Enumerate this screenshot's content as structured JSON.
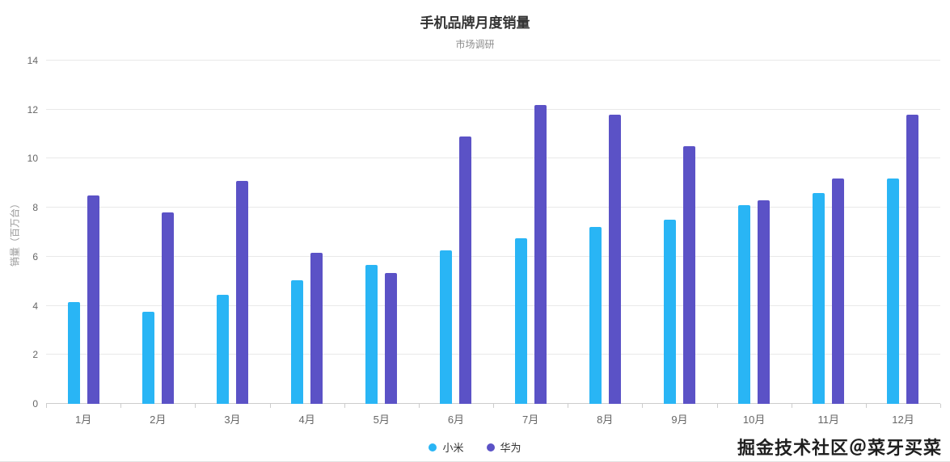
{
  "title": "手机品牌月度销量",
  "subtitle": "市场调研",
  "y_axis_title": "销量（百万台）",
  "watermark": "掘金技术社区＠菜牙买菜",
  "chart_data": {
    "type": "bar",
    "title": "手机品牌月度销量",
    "subtitle": "市场调研",
    "ylabel": "销量（百万台）",
    "xlabel": "",
    "categories": [
      "1月",
      "2月",
      "3月",
      "4月",
      "5月",
      "6月",
      "7月",
      "8月",
      "9月",
      "10月",
      "11月",
      "12月"
    ],
    "series": [
      {
        "name": "小米",
        "color": "#29b5f5",
        "values": [
          4.15,
          3.75,
          4.45,
          5.05,
          5.65,
          6.25,
          6.75,
          7.2,
          7.5,
          8.1,
          8.6,
          9.2
        ]
      },
      {
        "name": "华为",
        "color": "#5b52c6",
        "values": [
          8.5,
          7.8,
          9.1,
          6.15,
          5.35,
          10.9,
          12.2,
          11.8,
          10.5,
          8.3,
          9.2,
          11.8
        ]
      }
    ],
    "ylim": [
      0,
      14
    ],
    "yticks": [
      0,
      2,
      4,
      6,
      8,
      10,
      12,
      14
    ],
    "grid": true,
    "legend_position": "bottom"
  }
}
